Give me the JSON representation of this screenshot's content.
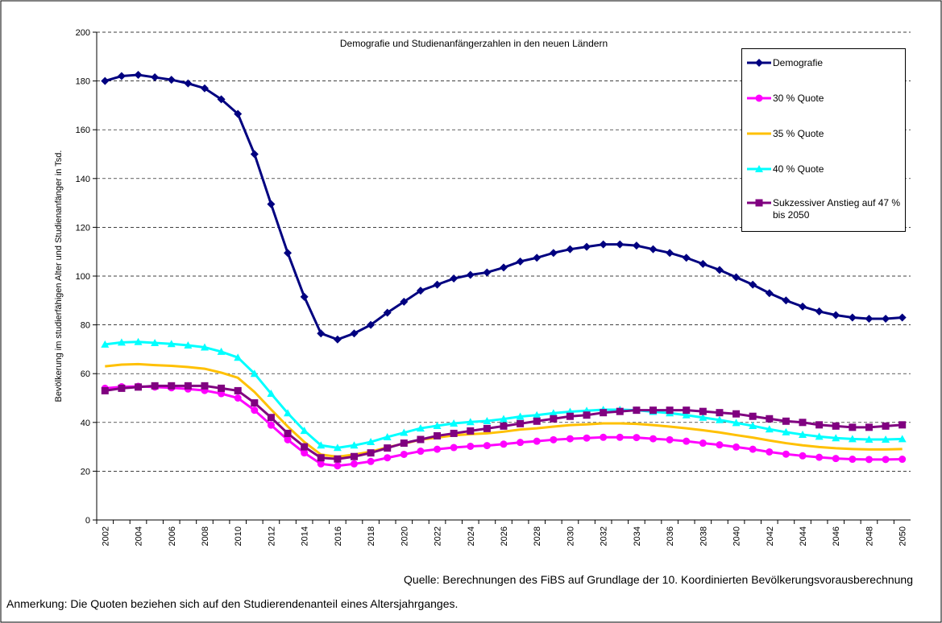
{
  "chart_data": {
    "type": "line",
    "title": "Demografie und Studienanfängerzahlen in den neuen Ländern",
    "ylabel": "Bevölkerung im studierfähigen Alter und Studienanfänger in Tsd.",
    "source": "Quelle: Berechnungen des FiBS auf Grundlage der 10. Koordinierten Bevölkerungsvorausberechnung",
    "note": "Anmerkung: Die Quoten beziehen sich auf den Studierendenanteil eines Altersjahrganges.",
    "categories": [
      "2002",
      null,
      "2004",
      null,
      "2006",
      null,
      "2008",
      null,
      "2010",
      null,
      "2012",
      null,
      "2014",
      null,
      "2016",
      null,
      "2018",
      null,
      "2020",
      null,
      "2022",
      null,
      "2024",
      null,
      "2026",
      null,
      "2028",
      null,
      "2030",
      null,
      "2032",
      null,
      "2034",
      null,
      "2036",
      null,
      "2038",
      null,
      "2040",
      null,
      "2042",
      null,
      "2044",
      null,
      "2046",
      null,
      "2048",
      null,
      "2050"
    ],
    "ylim": [
      0,
      200
    ],
    "yticks": [
      0,
      20,
      40,
      60,
      80,
      100,
      120,
      140,
      160,
      180,
      200
    ],
    "grid": true,
    "series": [
      {
        "name": "Demografie",
        "color": "#000080",
        "marker": "diamond",
        "values": [
          180,
          182,
          182.5,
          181.5,
          180.5,
          179,
          177,
          172.5,
          166.5,
          150,
          129.5,
          109.5,
          91.5,
          76.5,
          74,
          76.5,
          80,
          85,
          89.5,
          94,
          96.5,
          99,
          100.5,
          101.5,
          103.5,
          106,
          107.5,
          109.5,
          111,
          112,
          113,
          113,
          112.5,
          111,
          109.5,
          107.5,
          105,
          102.5,
          99.5,
          96.5,
          93,
          90,
          87.5,
          85.5,
          84,
          83,
          82.5,
          82.5,
          83
        ]
      },
      {
        "name": "30 % Quote",
        "color": "#ff00ff",
        "marker": "circle",
        "values": [
          54,
          54.6,
          54.8,
          54.5,
          54.2,
          53.7,
          53.1,
          51.8,
          50,
          45,
          38.9,
          32.9,
          27.5,
          23,
          22.2,
          23,
          24,
          25.5,
          26.9,
          28.2,
          29,
          29.7,
          30.2,
          30.5,
          31.1,
          31.8,
          32.3,
          32.9,
          33.3,
          33.6,
          33.9,
          33.9,
          33.8,
          33.3,
          32.9,
          32.3,
          31.5,
          30.8,
          29.9,
          29,
          27.9,
          27,
          26.3,
          25.7,
          25.2,
          24.9,
          24.8,
          24.8,
          24.9
        ]
      },
      {
        "name": "35 % Quote",
        "color": "#ffc000",
        "marker": "none",
        "values": [
          63,
          63.7,
          63.9,
          63.5,
          63.2,
          62.7,
          62,
          60.4,
          58.3,
          52.5,
          45.3,
          38.3,
          32,
          26.8,
          25.9,
          26.8,
          28,
          29.8,
          31.3,
          32.9,
          33.8,
          34.7,
          35.2,
          35.5,
          36.2,
          37.1,
          37.6,
          38.3,
          38.9,
          39.2,
          39.6,
          39.6,
          39.4,
          38.9,
          38.3,
          37.6,
          36.8,
          35.9,
          34.8,
          33.8,
          32.6,
          31.5,
          30.6,
          29.9,
          29.4,
          29.1,
          28.9,
          28.9,
          29.1
        ]
      },
      {
        "name": "40 % Quote",
        "color": "#00ffff",
        "marker": "triangle",
        "values": [
          72,
          72.8,
          73,
          72.6,
          72.2,
          71.6,
          70.8,
          69,
          66.6,
          60,
          51.8,
          43.8,
          36.6,
          30.6,
          29.6,
          30.6,
          32,
          34,
          35.8,
          37.6,
          38.6,
          39.6,
          40.2,
          40.6,
          41.4,
          42.4,
          43,
          43.8,
          44.4,
          44.8,
          45.2,
          45.2,
          45,
          44.4,
          43.8,
          43,
          42,
          41,
          39.8,
          38.6,
          37.2,
          36,
          35,
          34.2,
          33.6,
          33.2,
          33,
          33,
          33.2
        ]
      },
      {
        "name": "Sukzessiver Anstieg auf 47 % bis 2050",
        "color": "#800080",
        "marker": "square",
        "values": [
          53,
          54,
          54.5,
          55,
          55,
          55,
          55,
          54,
          53,
          48,
          42,
          35.5,
          30,
          25.5,
          25,
          26,
          27.5,
          29.5,
          31.5,
          33,
          34.5,
          35.5,
          36.5,
          37.5,
          38.5,
          39.5,
          40.5,
          41.5,
          42.5,
          43,
          44,
          44.5,
          45,
          45,
          45,
          45,
          44.5,
          44,
          43.5,
          42.5,
          41.5,
          40.5,
          40,
          39,
          38.5,
          38,
          38,
          38.5,
          39
        ]
      }
    ]
  }
}
